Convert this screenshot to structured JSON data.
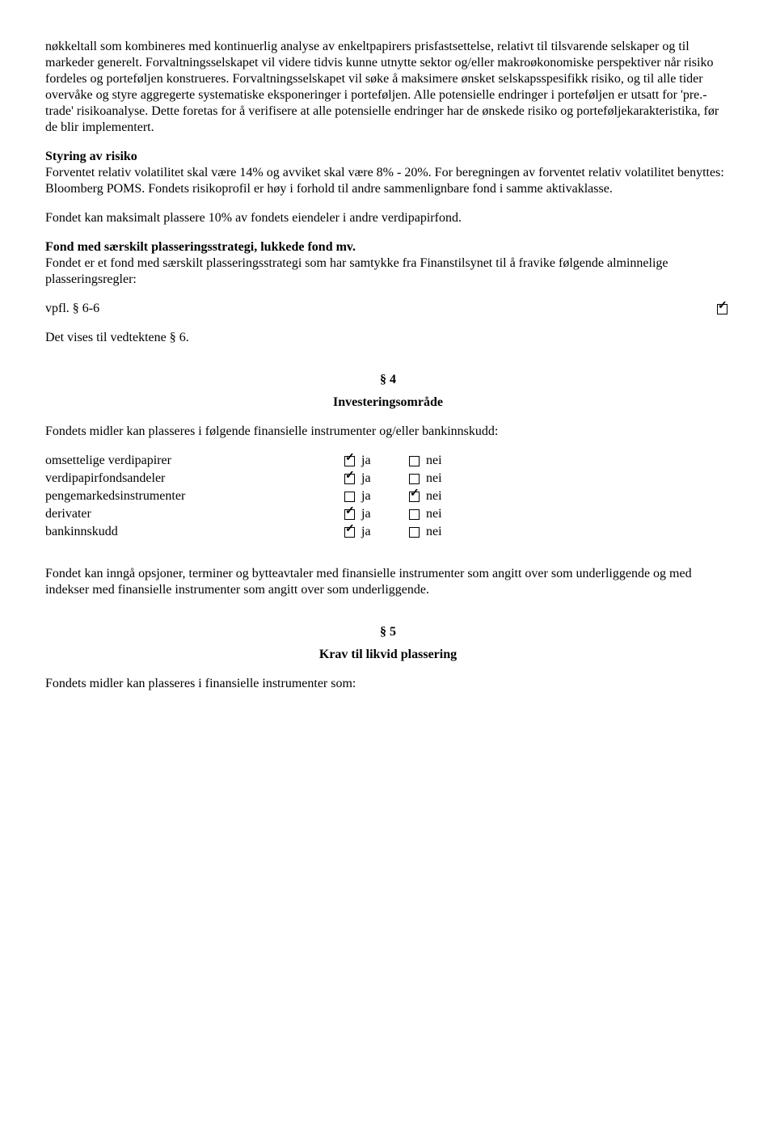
{
  "para1": "nøkkeltall som kombineres med kontinuerlig analyse av enkeltpapirers prisfastsettelse, relativt til tilsvarende selskaper og til markeder generelt. Forvaltningsselskapet vil videre tidvis kunne utnytte sektor og/eller makroøkonomiske perspektiver når risiko fordeles og porteføljen konstrueres. Forvaltningsselskapet vil søke å maksimere ønsket selskapsspesifikk risiko, og til alle tider overvåke og styre aggregerte systematiske eksponeringer i porteføljen. Alle potensielle endringer i porteføljen er utsatt for 'pre.-trade' risikoanalyse. Dette foretas for å verifisere at alle potensielle endringer har de ønskede risiko og porteføljekarakteristika, før de blir implementert.",
  "styring_heading": "Styring av risiko",
  "styring_text": "Forventet relativ volatilitet skal være 14%  og avviket skal være 8% - 20%. For beregningen av forventet relativ volatilitet benyttes: Bloomberg POMS. Fondets risikoprofil er høy i forhold til andre sammenlignbare fond i samme aktivaklasse.",
  "para_max": "Fondet kan maksimalt plassere 10% av fondets eiendeler i andre verdipapirfond.",
  "fond_heading": "Fond med særskilt plasseringsstrategi, lukkede fond mv.",
  "fond_text": "Fondet er et fond med særskilt plasseringsstrategi som har samtykke fra Finanstilsynet til å fravike følgende alminnelige plasseringsregler:",
  "vpfl_label": "vpfl. § 6-6",
  "vpfl_checked": true,
  "vedtektene": "Det vises til vedtektene § 6.",
  "sec4_num": "§ 4",
  "sec4_title": "Investeringsområde",
  "sec4_intro": "Fondets midler kan plasseres i følgende finansielle instrumenter og/eller bankinnskudd:",
  "ja_label": "ja",
  "nei_label": "nei",
  "instruments": [
    {
      "label": "omsettelige verdipapirer",
      "ja": true,
      "nei": false
    },
    {
      "label": "verdipapirfondsandeler",
      "ja": true,
      "nei": false
    },
    {
      "label": "pengemarkedsinstrumenter",
      "ja": false,
      "nei": true
    },
    {
      "label": "derivater",
      "ja": true,
      "nei": false
    },
    {
      "label": "bankinnskudd",
      "ja": true,
      "nei": false
    }
  ],
  "para_opsjoner": "Fondet kan inngå opsjoner, terminer og bytteavtaler med finansielle instrumenter som angitt over som underliggende og med indekser med finansielle instrumenter som angitt over som underliggende.",
  "sec5_num": "§ 5",
  "sec5_title": "Krav til likvid plassering",
  "sec5_intro": "Fondets midler kan plasseres i finansielle instrumenter som:"
}
